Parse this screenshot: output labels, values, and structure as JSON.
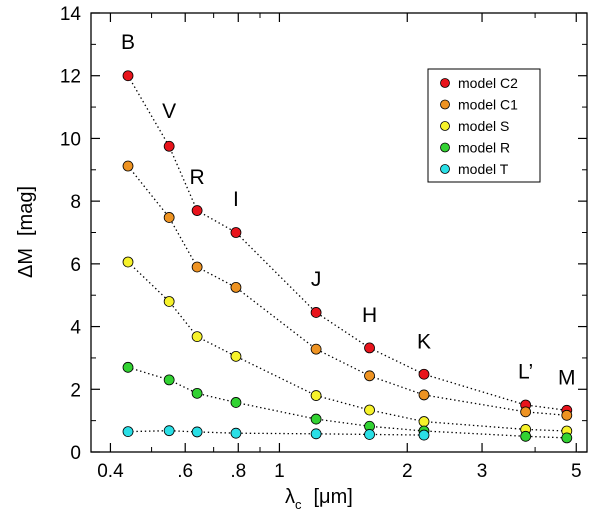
{
  "chart_data": {
    "type": "scatter",
    "title": "",
    "xscale": "log",
    "xlim": [
      0.36,
      5.3
    ],
    "ylim": [
      0,
      14
    ],
    "xlabel": {
      "main": "λ",
      "sub": "c",
      "unit": "[μm]"
    },
    "ylabel": {
      "main": "ΔM",
      "unit": "[mag]"
    },
    "xticks": [
      {
        "value": 0.4,
        "label": "0.4"
      },
      {
        "value": 0.6,
        "label": ".6"
      },
      {
        "value": 0.8,
        "label": ".8"
      },
      {
        "value": 1,
        "label": "1"
      },
      {
        "value": 2,
        "label": "2"
      },
      {
        "value": 3,
        "label": "3"
      },
      {
        "value": 5,
        "label": "5"
      }
    ],
    "xminor": [
      0.5,
      0.7,
      0.9,
      4
    ],
    "yticks": [
      0,
      2,
      4,
      6,
      8,
      10,
      12,
      14
    ],
    "x": [
      0.44,
      0.55,
      0.64,
      0.79,
      1.22,
      1.63,
      2.19,
      3.8,
      4.75
    ],
    "bands": [
      {
        "label": "B",
        "x": 0.44,
        "y": 12.85
      },
      {
        "label": "V",
        "x": 0.55,
        "y": 10.65
      },
      {
        "label": "R",
        "x": 0.64,
        "y": 8.55
      },
      {
        "label": "I",
        "x": 0.79,
        "y": 7.85
      },
      {
        "label": "J",
        "x": 1.22,
        "y": 5.3
      },
      {
        "label": "H",
        "x": 1.63,
        "y": 4.15
      },
      {
        "label": "K",
        "x": 2.19,
        "y": 3.3
      },
      {
        "label": "L’",
        "x": 3.8,
        "y": 2.35
      },
      {
        "label": "M",
        "x": 4.75,
        "y": 2.15
      }
    ],
    "series": [
      {
        "name": "model C2",
        "color": "#e8141c",
        "values": [
          12.0,
          9.75,
          7.7,
          7.0,
          4.45,
          3.32,
          2.48,
          1.5,
          1.33
        ]
      },
      {
        "name": "model C1",
        "color": "#ee9322",
        "values": [
          9.12,
          7.48,
          5.9,
          5.25,
          3.28,
          2.43,
          1.82,
          1.28,
          1.17
        ]
      },
      {
        "name": "model S",
        "color": "#f6f22a",
        "values": [
          6.06,
          4.8,
          3.68,
          3.05,
          1.8,
          1.34,
          0.97,
          0.72,
          0.67
        ]
      },
      {
        "name": "model R",
        "color": "#32d232",
        "values": [
          2.7,
          2.3,
          1.87,
          1.58,
          1.05,
          0.82,
          0.67,
          0.5,
          0.45
        ]
      },
      {
        "name": "model T",
        "color": "#2adfe6",
        "values": [
          0.65,
          0.68,
          0.64,
          0.6,
          0.58,
          0.56,
          0.54,
          null,
          null
        ]
      }
    ],
    "legend": {
      "position": "top-right"
    },
    "grid": false
  }
}
